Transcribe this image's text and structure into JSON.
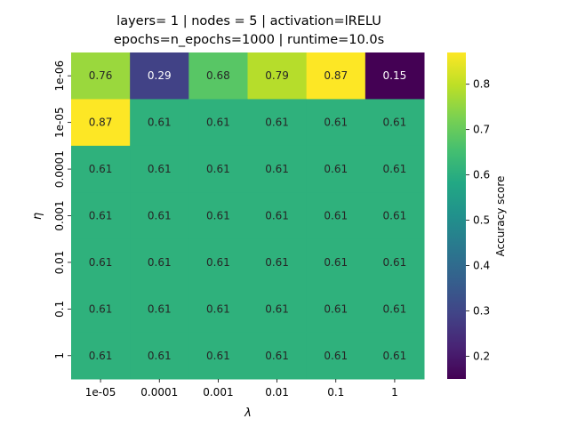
{
  "chart_data": {
    "type": "heatmap",
    "title_line1": "layers= 1 | nodes = 5 | activation=lRELU",
    "title_line2": "epochs=n_epochs=1000 | runtime=10.0s",
    "xlabel": "λ",
    "ylabel": "η",
    "x_categories": [
      "1e-05",
      "0.0001",
      "0.001",
      "0.01",
      "0.1",
      "1"
    ],
    "y_categories": [
      "1e-06",
      "1e-05",
      "0.0001",
      "0.001",
      "0.01",
      "0.1",
      "1"
    ],
    "values": [
      [
        0.76,
        0.29,
        0.68,
        0.79,
        0.87,
        0.15
      ],
      [
        0.87,
        0.61,
        0.61,
        0.61,
        0.61,
        0.61
      ],
      [
        0.61,
        0.61,
        0.61,
        0.61,
        0.61,
        0.61
      ],
      [
        0.61,
        0.61,
        0.61,
        0.61,
        0.61,
        0.61
      ],
      [
        0.61,
        0.61,
        0.61,
        0.61,
        0.61,
        0.61
      ],
      [
        0.61,
        0.61,
        0.61,
        0.61,
        0.61,
        0.61
      ],
      [
        0.61,
        0.61,
        0.61,
        0.61,
        0.61,
        0.61
      ]
    ],
    "colorbar": {
      "label": "Accuracy score",
      "colormap": "viridis",
      "vmin": 0.15,
      "vmax": 0.87,
      "ticks": [
        0.2,
        0.3,
        0.4,
        0.5,
        0.6,
        0.7,
        0.8
      ]
    }
  }
}
